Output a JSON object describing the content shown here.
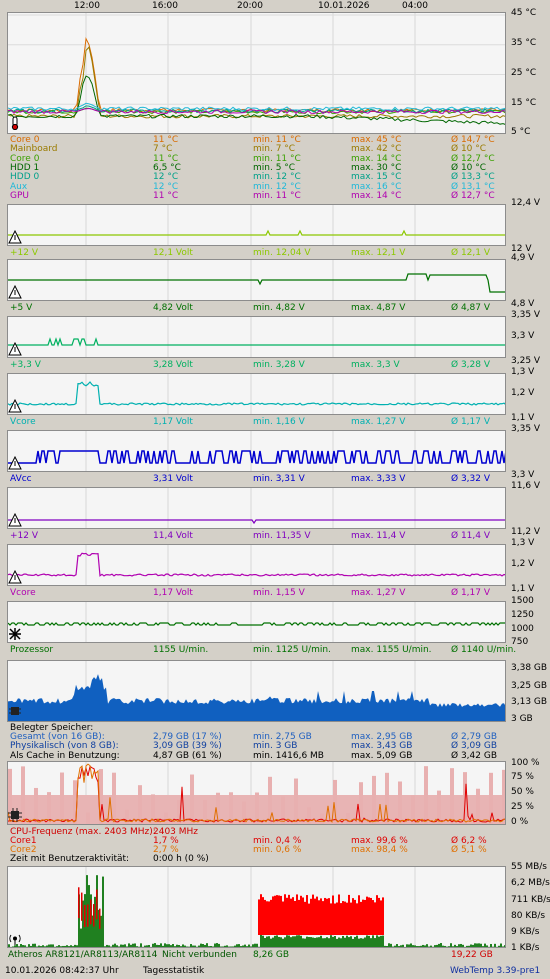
{
  "time_axis": [
    "12:00",
    "16:00",
    "20:00",
    "10.01.2026",
    "04:00"
  ],
  "temps": {
    "ticks": [
      "45 °C",
      "35 °C",
      "25 °C",
      "15 °C",
      "5 °C"
    ],
    "rows": [
      {
        "name": "Core 0",
        "cur": "11 °C",
        "min": "min. 11 °C",
        "max": "max. 45 °C",
        "avg": "Ø 14,7 °C",
        "color": "#d96b00"
      },
      {
        "name": "Mainboard",
        "cur": "7 °C",
        "min": "min. 7 °C",
        "max": "max. 42 °C",
        "avg": "Ø 10 °C",
        "color": "#9a7b00"
      },
      {
        "name": "Core 0",
        "cur": "11 °C",
        "min": "min. 11 °C",
        "max": "max. 14 °C",
        "avg": "Ø 12,7 °C",
        "color": "#3aa000"
      },
      {
        "name": "HDD 1",
        "cur": "6,5 °C",
        "min": "min. 5 °C",
        "max": "max. 30 °C",
        "avg": "Ø 10 °C",
        "color": "#006600"
      },
      {
        "name": "HDD 0",
        "cur": "12 °C",
        "min": "min. 12 °C",
        "max": "max. 15 °C",
        "avg": "Ø 13,3 °C",
        "color": "#00a08a"
      },
      {
        "name": "Aux",
        "cur": "12 °C",
        "min": "min. 12 °C",
        "max": "max. 16 °C",
        "avg": "Ø 13,1 °C",
        "color": "#20b8d8"
      },
      {
        "name": "GPU",
        "cur": "11 °C",
        "min": "min. 11 °C",
        "max": "max. 14 °C",
        "avg": "Ø 12,7 °C",
        "color": "#b000b0"
      }
    ]
  },
  "voltages": [
    {
      "name": "+12 V",
      "cur": "12,1 Volt",
      "min": "min. 12,04 V",
      "max": "max. 12,1 V",
      "avg": "Ø 12,1 V",
      "hi": "12,4 V",
      "lo": "12 V",
      "color": "#8cc800"
    },
    {
      "name": "+5 V",
      "cur": "4,82 Volt",
      "min": "min. 4,82 V",
      "max": "max. 4,87 V",
      "avg": "Ø 4,87 V",
      "hi": "4,9 V",
      "lo": "4,8 V",
      "color": "#007000"
    },
    {
      "name": "+3,3 V",
      "cur": "3,28 Volt",
      "min": "min. 3,28 V",
      "max": "max. 3,3 V",
      "avg": "Ø 3,28 V",
      "hi": "3,35 V",
      "mid": "3,3 V",
      "lo": "3,25 V",
      "color": "#00b060"
    },
    {
      "name": "Vcore",
      "cur": "1,17 Volt",
      "min": "min. 1,16 V",
      "max": "max. 1,27 V",
      "avg": "Ø 1,17 V",
      "hi": "1,3 V",
      "mid": "1,2 V",
      "lo": "1,1 V",
      "color": "#00b0b0"
    },
    {
      "name": "AVcc",
      "cur": "3,31 Volt",
      "min": "min. 3,31 V",
      "max": "max. 3,33 V",
      "avg": "Ø 3,32 V",
      "hi": "3,35 V",
      "lo": "3,3 V",
      "color": "#0000d0"
    },
    {
      "name": "+12 V",
      "cur": "11,4 Volt",
      "min": "min. 11,35 V",
      "max": "max. 11,4 V",
      "avg": "Ø 11,4 V",
      "hi": "11,6 V",
      "lo": "11,2 V",
      "color": "#8000c0"
    },
    {
      "name": "Vcore",
      "cur": "1,17 Volt",
      "min": "min. 1,15 V",
      "max": "max. 1,27 V",
      "avg": "Ø 1,17 V",
      "hi": "1,3 V",
      "mid": "1,2 V",
      "lo": "1,1 V",
      "color": "#b000b0"
    }
  ],
  "fan": {
    "name": "Prozessor",
    "cur": "1155 U/min.",
    "min": "min. 1125 U/min.",
    "max": "max. 1155 U/min.",
    "avg": "Ø 1140 U/min.",
    "ticks": [
      "1500",
      "1250",
      "1000",
      "750"
    ],
    "color": "#007000"
  },
  "memory": {
    "ticks": [
      "3,38 GB",
      "3,25 GB",
      "3,13 GB",
      "3 GB"
    ],
    "title": "Belegter Speicher:",
    "rows": [
      {
        "name": "Gesamt (von 16 GB):",
        "cur": "2,79 GB (17 %)",
        "min": "min. 2,75 GB",
        "max": "max. 2,95 GB",
        "avg": "Ø 2,79 GB",
        "color": "#2060c0"
      },
      {
        "name": "Physikalisch (von 8 GB):",
        "cur": "3,09 GB (39 %)",
        "min": "min. 3 GB",
        "max": "max. 3,43 GB",
        "avg": "Ø 3,09 GB",
        "color": "#1040a0"
      },
      {
        "name": "Als Cache in Benutzung:",
        "cur": "4,87 GB (61 %)",
        "min": "min. 1416,6 MB",
        "max": "max. 5,09 GB",
        "avg": "Ø 3,42 GB",
        "color": "#000000"
      }
    ]
  },
  "cpu": {
    "ticks": [
      "100 %",
      "75 %",
      "50 %",
      "25 %",
      "0 %"
    ],
    "freq_label": "CPU-Frequenz (max. 2403 MHz):",
    "freq_val": "2403 MHz",
    "rows": [
      {
        "name": "Core1",
        "cur": "1,7 %",
        "min": "min. 0,4 %",
        "max": "max. 99,6 %",
        "avg": "Ø 6,2 %",
        "color": "#e00000"
      },
      {
        "name": "Core2",
        "cur": "2,7 %",
        "min": "min. 0,6 %",
        "max": "max. 98,4 %",
        "avg": "Ø 5,1 %",
        "color": "#e07000"
      }
    ],
    "activity_label": "Zeit mit Benutzeraktivität:",
    "activity_val": "0:00 h (0 %)"
  },
  "net": {
    "ticks": [
      "55 MB/s",
      "6,2 MB/s",
      "711 KB/s",
      "80 KB/s",
      "9 KB/s",
      "1 KB/s"
    ],
    "name": "Atheros AR8121/AR8113/AR8114",
    "status": "Nicht verbunden",
    "down": "8,26 GB",
    "up": "19,22 GB"
  },
  "footer": {
    "datetime": "10.01.2026 08:42:37 Uhr",
    "stats": "Tagesstatistik",
    "version": "WebTemp 3.39-pre1"
  }
}
